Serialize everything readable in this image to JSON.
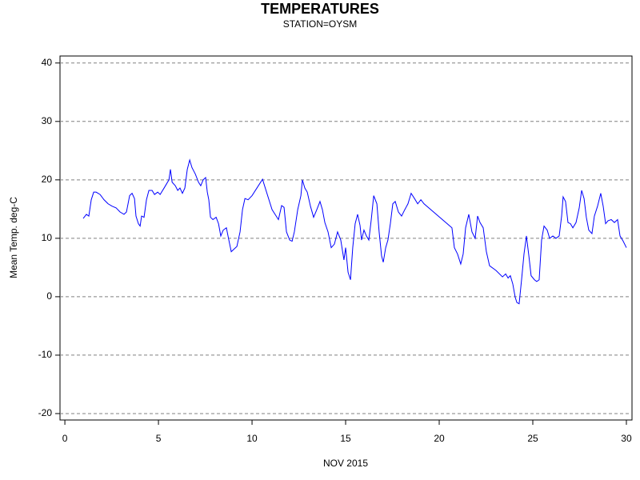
{
  "chart_data": {
    "type": "line",
    "title": "TEMPERATURES",
    "subtitle": "STATION=OYSM",
    "x_label": "NOV 2015",
    "y_label": "Mean Temp. deg-C",
    "xlim": [
      -0.26,
      30.3
    ],
    "ylim": [
      -21.1,
      41.2
    ],
    "xticks": [
      0,
      5,
      10,
      15,
      20,
      25,
      30
    ],
    "yticks": [
      -20,
      -10,
      0,
      10,
      20,
      30,
      40
    ],
    "grid": true,
    "series": [
      {
        "name": "Mean Temp",
        "color": "#0000ff",
        "x": [
          0.98,
          1.15,
          1.28,
          1.41,
          1.54,
          1.67,
          1.88,
          2.09,
          2.31,
          2.52,
          2.74,
          2.95,
          3.16,
          3.29,
          3.46,
          3.59,
          3.72,
          3.8,
          3.93,
          4.02,
          4.1,
          4.23,
          4.36,
          4.49,
          4.66,
          4.79,
          4.96,
          5.09,
          5.3,
          5.43,
          5.56,
          5.64,
          5.73,
          5.9,
          6.03,
          6.15,
          6.28,
          6.41,
          6.54,
          6.67,
          6.79,
          6.97,
          7.14,
          7.26,
          7.39,
          7.52,
          7.61,
          7.69,
          7.78,
          7.91,
          8.08,
          8.21,
          8.33,
          8.46,
          8.63,
          8.76,
          8.89,
          9.02,
          9.19,
          9.36,
          9.49,
          9.62,
          9.79,
          10.0,
          10.56,
          11.07,
          11.41,
          11.58,
          11.71,
          11.84,
          12.01,
          12.14,
          12.26,
          12.44,
          12.61,
          12.69,
          12.82,
          12.95,
          13.12,
          13.29,
          13.46,
          13.63,
          13.76,
          13.89,
          14.06,
          14.23,
          14.4,
          14.57,
          14.74,
          14.91,
          15.0,
          15.13,
          15.26,
          15.38,
          15.51,
          15.64,
          15.77,
          15.85,
          15.98,
          16.11,
          16.24,
          16.37,
          16.5,
          16.67,
          16.79,
          16.92,
          17.01,
          17.14,
          17.26,
          17.39,
          17.52,
          17.65,
          17.82,
          17.99,
          18.16,
          18.33,
          18.5,
          18.68,
          18.85,
          19.02,
          19.19,
          20.68,
          20.81,
          20.98,
          21.15,
          21.28,
          21.41,
          21.58,
          21.75,
          21.92,
          22.05,
          22.18,
          22.35,
          22.52,
          22.69,
          23.03,
          23.38,
          23.55,
          23.68,
          23.8,
          23.93,
          24.06,
          24.15,
          24.27,
          24.4,
          24.53,
          24.66,
          24.79,
          24.91,
          25.09,
          25.21,
          25.34,
          25.47,
          25.6,
          25.77,
          25.9,
          26.07,
          26.24,
          26.41,
          26.54,
          26.62,
          26.75,
          26.88,
          27.01,
          27.14,
          27.31,
          27.48,
          27.61,
          27.74,
          27.86,
          27.99,
          28.16,
          28.29,
          28.46,
          28.63,
          28.76,
          28.89,
          29.02,
          29.19,
          29.36,
          29.53,
          29.66,
          29.83,
          30.0
        ],
        "values": [
          13.4,
          14.1,
          13.8,
          16.6,
          17.9,
          17.9,
          17.5,
          16.6,
          15.9,
          15.5,
          15.2,
          14.5,
          14.1,
          14.5,
          17.3,
          17.7,
          16.8,
          13.8,
          12.5,
          12.1,
          13.8,
          13.6,
          16.6,
          18.2,
          18.2,
          17.5,
          17.9,
          17.5,
          18.6,
          19.3,
          20.0,
          21.8,
          19.6,
          19.0,
          18.2,
          18.6,
          17.7,
          18.6,
          21.8,
          23.4,
          22.1,
          21.0,
          19.6,
          19.0,
          20.0,
          20.4,
          17.9,
          16.6,
          13.6,
          13.2,
          13.6,
          12.5,
          10.4,
          11.4,
          11.8,
          9.7,
          7.7,
          8.1,
          8.6,
          11.1,
          14.9,
          16.8,
          16.6,
          17.3,
          20.1,
          14.9,
          13.2,
          15.6,
          15.3,
          11.1,
          9.7,
          9.5,
          11.1,
          14.9,
          17.3,
          20.0,
          18.6,
          17.9,
          15.5,
          13.6,
          14.9,
          16.3,
          14.9,
          12.7,
          11.1,
          8.4,
          9.0,
          11.1,
          9.7,
          6.3,
          8.4,
          4.2,
          2.9,
          8.4,
          12.5,
          14.1,
          12.2,
          9.7,
          11.4,
          10.4,
          9.7,
          13.2,
          17.3,
          15.9,
          11.1,
          7.0,
          5.9,
          8.4,
          9.7,
          12.5,
          15.9,
          16.3,
          14.5,
          13.8,
          14.9,
          15.9,
          17.7,
          16.8,
          15.9,
          16.6,
          15.9,
          11.8,
          8.4,
          7.3,
          5.6,
          7.3,
          11.8,
          14.1,
          11.1,
          10.0,
          13.8,
          12.7,
          11.8,
          7.7,
          5.3,
          4.5,
          3.4,
          3.9,
          3.2,
          3.6,
          2.2,
          -0.1,
          -1.0,
          -1.2,
          2.9,
          7.3,
          10.4,
          7.0,
          3.6,
          2.9,
          2.6,
          2.9,
          9.7,
          12.1,
          11.4,
          10.0,
          10.4,
          10.0,
          10.4,
          13.8,
          17.1,
          16.3,
          12.7,
          12.5,
          11.8,
          12.7,
          15.2,
          18.2,
          16.8,
          13.6,
          11.4,
          10.8,
          13.8,
          15.5,
          17.7,
          15.5,
          12.5,
          13.0,
          13.2,
          12.7,
          13.2,
          10.4,
          9.5,
          8.4
        ]
      }
    ]
  }
}
